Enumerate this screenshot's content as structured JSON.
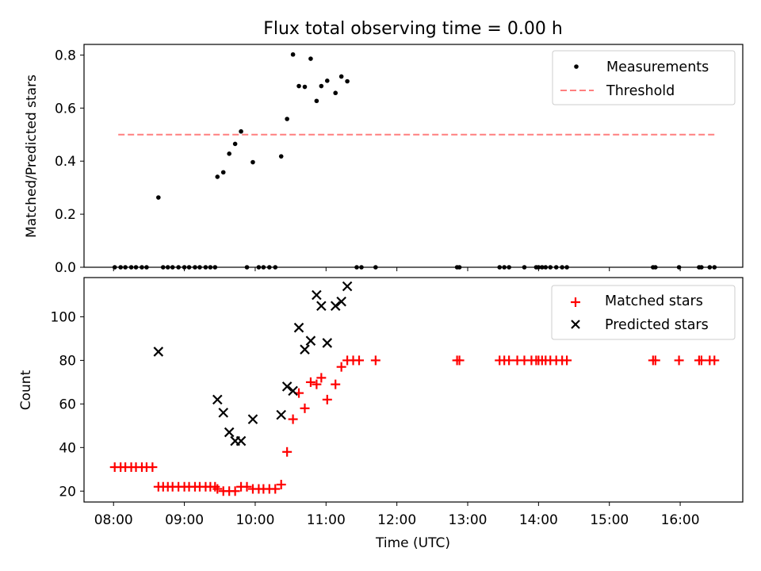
{
  "figure": {
    "title": "Flux total observing time = 0.00 h",
    "xlabel": "Time (UTC)"
  },
  "chart_data": [
    {
      "type": "scatter",
      "title": "Flux total observing time = 0.00 h",
      "ylabel": "Matched/Predicted stars",
      "xlim": [
        "07:35",
        "16:53"
      ],
      "ylim": [
        0,
        0.84
      ],
      "yticks": [
        0.0,
        0.2,
        0.4,
        0.6,
        0.8
      ],
      "ytick_labels": [
        "0.0",
        "0.2",
        "0.4",
        "0.6",
        "0.8"
      ],
      "xticks": [
        "08:00",
        "09:00",
        "10:00",
        "11:00",
        "12:00",
        "13:00",
        "14:00",
        "15:00",
        "16:00"
      ],
      "legend_position": "top-right",
      "threshold": {
        "name": "Threshold",
        "y": 0.5,
        "x": [
          "08:04",
          "16:31"
        ],
        "color": "#ff7f7f"
      },
      "series": [
        {
          "name": "Measurements",
          "color": "#000000",
          "points": [
            [
              "08:01",
              0.0
            ],
            [
              "08:06",
              0.0
            ],
            [
              "08:10",
              0.0
            ],
            [
              "08:15",
              0.0
            ],
            [
              "08:19",
              0.0
            ],
            [
              "08:24",
              0.0
            ],
            [
              "08:28",
              0.0
            ],
            [
              "08:38",
              0.263
            ],
            [
              "08:42",
              0.0
            ],
            [
              "08:46",
              0.0
            ],
            [
              "08:50",
              0.0
            ],
            [
              "08:55",
              0.0
            ],
            [
              "09:00",
              0.0
            ],
            [
              "09:04",
              0.0
            ],
            [
              "09:09",
              0.0
            ],
            [
              "09:13",
              0.0
            ],
            [
              "09:18",
              0.0
            ],
            [
              "09:22",
              0.0
            ],
            [
              "09:26",
              0.0
            ],
            [
              "09:28",
              0.341
            ],
            [
              "09:33",
              0.358
            ],
            [
              "09:38",
              0.428
            ],
            [
              "09:43",
              0.465
            ],
            [
              "09:48",
              0.512
            ],
            [
              "09:53",
              0.0
            ],
            [
              "09:58",
              0.396
            ],
            [
              "10:03",
              0.0
            ],
            [
              "10:07",
              0.0
            ],
            [
              "10:12",
              0.0
            ],
            [
              "10:17",
              0.0
            ],
            [
              "10:22",
              0.418
            ],
            [
              "10:27",
              0.559
            ],
            [
              "10:32",
              0.802
            ],
            [
              "10:37",
              0.683
            ],
            [
              "10:42",
              0.68
            ],
            [
              "10:47",
              0.786
            ],
            [
              "10:52",
              0.627
            ],
            [
              "10:56",
              0.683
            ],
            [
              "11:01",
              0.703
            ],
            [
              "11:08",
              0.657
            ],
            [
              "11:13",
              0.719
            ],
            [
              "11:18",
              0.701
            ],
            [
              "11:26",
              0.0
            ],
            [
              "11:30",
              0.0
            ],
            [
              "11:42",
              0.0
            ],
            [
              "12:51",
              0.0
            ],
            [
              "12:53",
              0.0
            ],
            [
              "13:27",
              0.0
            ],
            [
              "13:31",
              0.0
            ],
            [
              "13:35",
              0.0
            ],
            [
              "13:48",
              0.0
            ],
            [
              "13:58",
              0.0
            ],
            [
              "14:00",
              0.0
            ],
            [
              "14:03",
              0.0
            ],
            [
              "14:06",
              0.0
            ],
            [
              "14:10",
              0.0
            ],
            [
              "14:15",
              0.0
            ],
            [
              "14:20",
              0.0
            ],
            [
              "14:24",
              0.0
            ],
            [
              "15:37",
              0.0
            ],
            [
              "15:39",
              0.0
            ],
            [
              "15:59",
              0.0
            ],
            [
              "16:16",
              0.0
            ],
            [
              "16:18",
              0.0
            ],
            [
              "16:25",
              0.0
            ],
            [
              "16:29",
              0.0
            ]
          ]
        }
      ]
    },
    {
      "type": "scatter",
      "ylabel": "Count",
      "xlabel": "Time (UTC)",
      "xlim": [
        "07:35",
        "16:53"
      ],
      "ylim": [
        15,
        118
      ],
      "yticks": [
        20,
        40,
        60,
        80,
        100
      ],
      "ytick_labels": [
        "20",
        "40",
        "60",
        "80",
        "100"
      ],
      "xticks": [
        "08:00",
        "09:00",
        "10:00",
        "11:00",
        "12:00",
        "13:00",
        "14:00",
        "15:00",
        "16:00"
      ],
      "xtick_labels": [
        "08:00",
        "09:00",
        "10:00",
        "11:00",
        "12:00",
        "13:00",
        "14:00",
        "15:00",
        "16:00"
      ],
      "legend_position": "top-right",
      "series": [
        {
          "name": "Matched stars",
          "marker": "plus",
          "color": "#ff0000",
          "points": [
            [
              "08:01",
              31
            ],
            [
              "08:06",
              31
            ],
            [
              "08:10",
              31
            ],
            [
              "08:15",
              31
            ],
            [
              "08:19",
              31
            ],
            [
              "08:24",
              31
            ],
            [
              "08:28",
              31
            ],
            [
              "08:33",
              31
            ],
            [
              "08:38",
              22
            ],
            [
              "08:42",
              22
            ],
            [
              "08:46",
              22
            ],
            [
              "08:50",
              22
            ],
            [
              "08:55",
              22
            ],
            [
              "09:00",
              22
            ],
            [
              "09:04",
              22
            ],
            [
              "09:09",
              22
            ],
            [
              "09:13",
              22
            ],
            [
              "09:18",
              22
            ],
            [
              "09:22",
              22
            ],
            [
              "09:26",
              22
            ],
            [
              "09:28",
              21
            ],
            [
              "09:33",
              20
            ],
            [
              "09:38",
              20
            ],
            [
              "09:43",
              20
            ],
            [
              "09:48",
              22
            ],
            [
              "09:53",
              22
            ],
            [
              "09:58",
              21
            ],
            [
              "10:03",
              21
            ],
            [
              "10:07",
              21
            ],
            [
              "10:12",
              21
            ],
            [
              "10:17",
              21
            ],
            [
              "10:22",
              23
            ],
            [
              "10:27",
              38
            ],
            [
              "10:32",
              53
            ],
            [
              "10:37",
              65
            ],
            [
              "10:42",
              58
            ],
            [
              "10:47",
              70
            ],
            [
              "10:52",
              69
            ],
            [
              "10:56",
              72
            ],
            [
              "11:01",
              62
            ],
            [
              "11:08",
              69
            ],
            [
              "11:13",
              77
            ],
            [
              "11:18",
              80
            ],
            [
              "11:23",
              80
            ],
            [
              "11:28",
              80
            ],
            [
              "11:42",
              80
            ],
            [
              "12:51",
              80
            ],
            [
              "12:53",
              80
            ],
            [
              "13:27",
              80
            ],
            [
              "13:31",
              80
            ],
            [
              "13:35",
              80
            ],
            [
              "13:42",
              80
            ],
            [
              "13:48",
              80
            ],
            [
              "13:54",
              80
            ],
            [
              "13:58",
              80
            ],
            [
              "14:00",
              80
            ],
            [
              "14:03",
              80
            ],
            [
              "14:06",
              80
            ],
            [
              "14:10",
              80
            ],
            [
              "14:15",
              80
            ],
            [
              "14:20",
              80
            ],
            [
              "14:24",
              80
            ],
            [
              "15:37",
              80
            ],
            [
              "15:39",
              80
            ],
            [
              "15:59",
              80
            ],
            [
              "16:16",
              80
            ],
            [
              "16:18",
              80
            ],
            [
              "16:25",
              80
            ],
            [
              "16:29",
              80
            ]
          ]
        },
        {
          "name": "Predicted stars",
          "marker": "x",
          "color": "#000000",
          "points": [
            [
              "08:38",
              84
            ],
            [
              "09:28",
              62
            ],
            [
              "09:33",
              56
            ],
            [
              "09:38",
              47
            ],
            [
              "09:43",
              43
            ],
            [
              "09:48",
              43
            ],
            [
              "09:58",
              53
            ],
            [
              "10:22",
              55
            ],
            [
              "10:27",
              68
            ],
            [
              "10:32",
              66
            ],
            [
              "10:37",
              95
            ],
            [
              "10:42",
              85
            ],
            [
              "10:47",
              89
            ],
            [
              "10:52",
              110
            ],
            [
              "10:56",
              105
            ],
            [
              "11:01",
              88
            ],
            [
              "11:08",
              105
            ],
            [
              "11:13",
              107
            ],
            [
              "11:18",
              114
            ]
          ]
        }
      ]
    }
  ]
}
